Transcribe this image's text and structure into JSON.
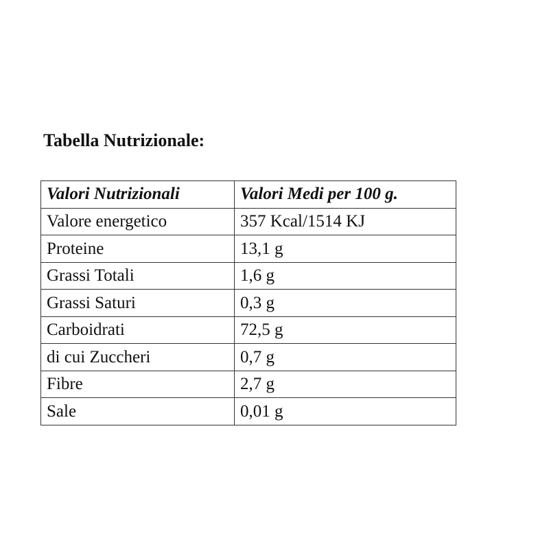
{
  "title": "Tabella Nutrizionale:",
  "table": {
    "headers": [
      "Valori Nutrizionali",
      "Valori Medi per 100 g."
    ],
    "rows": [
      [
        "Valore energetico",
        "357 Kcal/1514 KJ"
      ],
      [
        "Proteine",
        "13,1 g"
      ],
      [
        "Grassi Totali",
        "1,6 g"
      ],
      [
        "Grassi Saturi",
        "0,3 g"
      ],
      [
        "Carboidrati",
        "72,5 g"
      ],
      [
        "di cui Zuccheri",
        "0,7 g"
      ],
      [
        "Fibre",
        "2,7 g"
      ],
      [
        "Sale",
        "0,01 g"
      ]
    ]
  }
}
